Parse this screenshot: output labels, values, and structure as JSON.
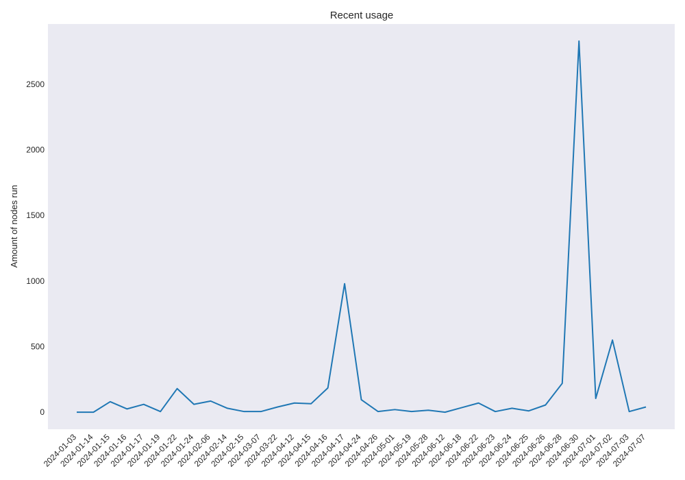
{
  "chart_data": {
    "type": "line",
    "title": "Recent usage",
    "xlabel": "",
    "ylabel": "Amount of nodes run",
    "ylim": [
      -130,
      2960
    ],
    "yticks": [
      0,
      500,
      1000,
      1500,
      2000,
      2500
    ],
    "grid": false,
    "background": "#eaeaf2",
    "line_color": "#1f77b4",
    "x": [
      "2024-01-03",
      "2024-01-14",
      "2024-01-15",
      "2024-01-16",
      "2024-01-17",
      "2024-01-19",
      "2024-01-22",
      "2024-01-24",
      "2024-02-06",
      "2024-02-14",
      "2024-02-15",
      "2024-03-07",
      "2024-03-22",
      "2024-04-12",
      "2024-04-15",
      "2024-04-16",
      "2024-04-17",
      "2024-04-24",
      "2024-04-26",
      "2024-05-01",
      "2024-05-19",
      "2024-05-28",
      "2024-06-12",
      "2024-06-18",
      "2024-06-22",
      "2024-06-23",
      "2024-06-24",
      "2024-06-25",
      "2024-06-26",
      "2024-06-28",
      "2024-06-30",
      "2024-07-01",
      "2024-07-02",
      "2024-07-03",
      "2024-07-07"
    ],
    "series": [
      {
        "values": [
          0,
          0,
          80,
          25,
          60,
          5,
          180,
          60,
          85,
          30,
          5,
          5,
          40,
          70,
          65,
          185,
          980,
          95,
          5,
          20,
          5,
          15,
          0,
          35,
          70,
          5,
          30,
          10,
          55,
          220,
          2830,
          105,
          550,
          5,
          40
        ]
      }
    ]
  }
}
